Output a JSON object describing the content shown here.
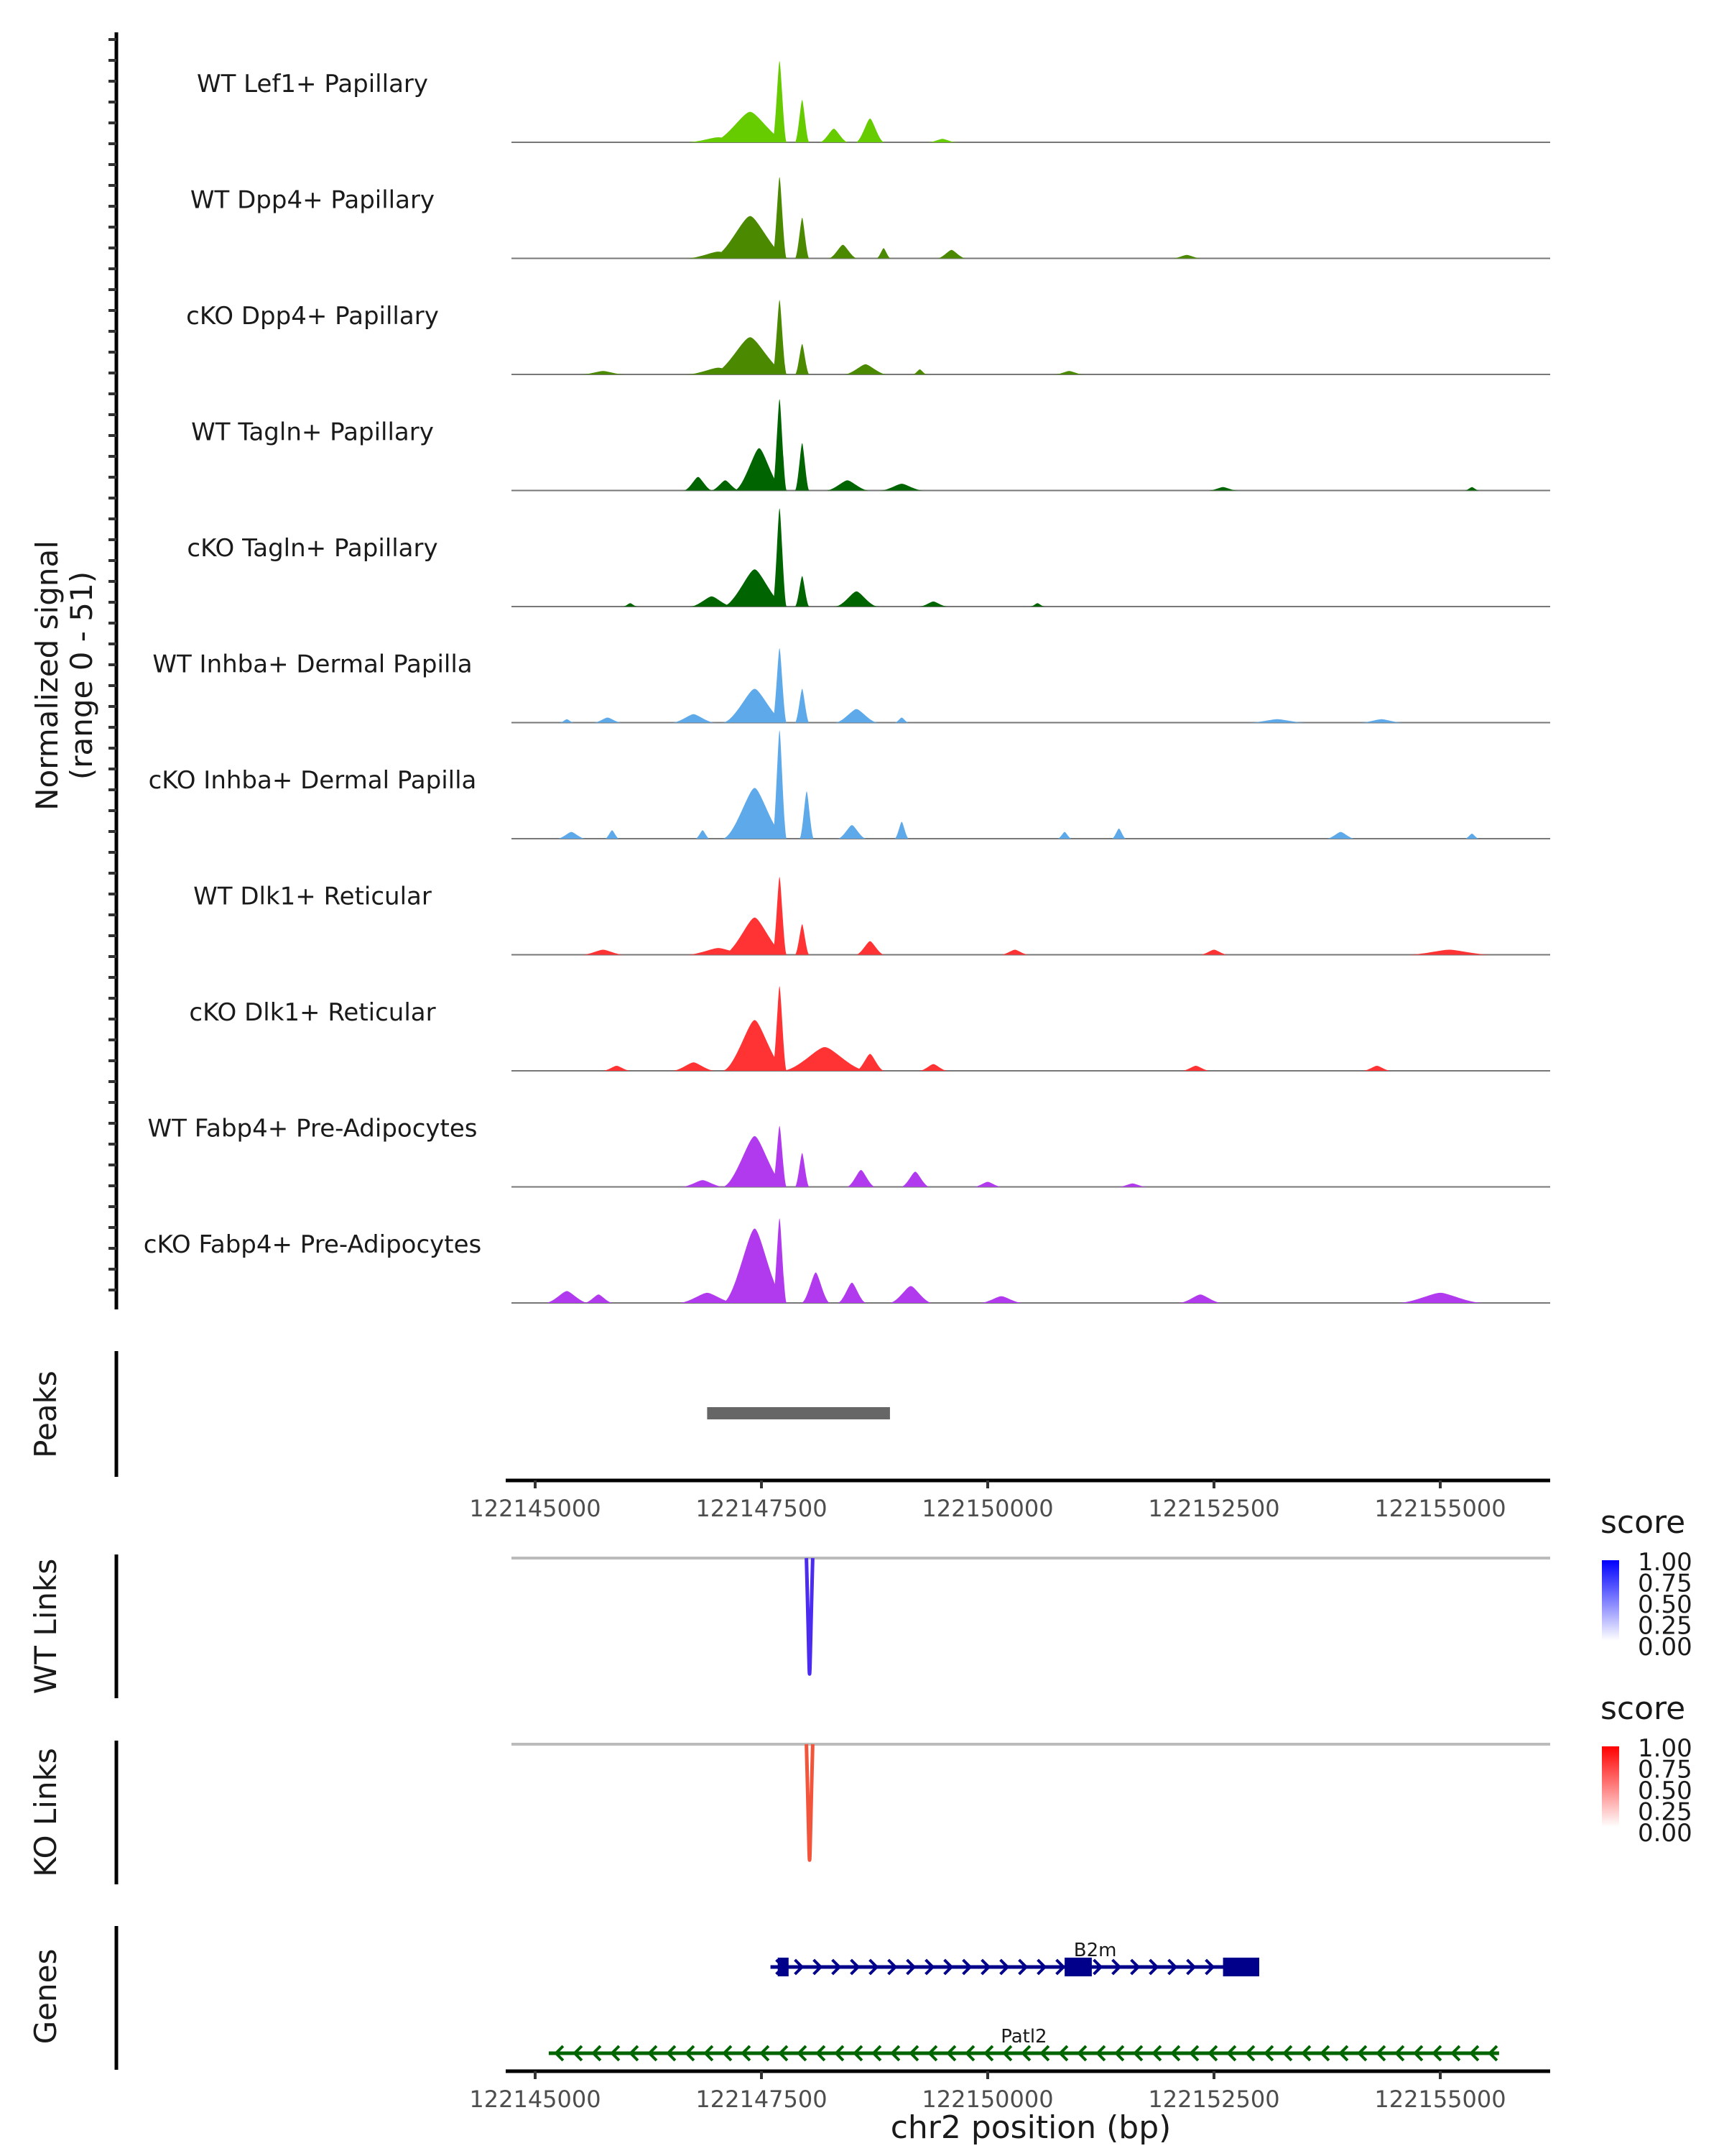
{
  "chart_data": {
    "type": "area",
    "title": "",
    "ylabel": "Normalized signal",
    "ylabel_sub": "(range 0 - 51)",
    "ylim": [
      0,
      51
    ],
    "xlabel": "chr2 position (bp)",
    "xlim": [
      122144850,
      122156400
    ],
    "x_ticks": [
      122145000,
      122147500,
      122150000,
      122152500,
      122155000
    ],
    "x_tick_labels": [
      "122145000",
      "122147500",
      "122150000",
      "122152500",
      "122155000"
    ],
    "tracks": [
      {
        "name": "WT Lef1+ Papillary",
        "color": "#66CC00",
        "peaks": [
          [
            122146800,
            122147250,
            3
          ],
          [
            122147100,
            122147650,
            18
          ],
          [
            122147650,
            122147750,
            48
          ],
          [
            122147900,
            122148000,
            25
          ],
          [
            122148200,
            122148400,
            8
          ],
          [
            122148600,
            122148800,
            14
          ],
          [
            122149400,
            122149600,
            2
          ]
        ]
      },
      {
        "name": "WT Dpp4+ Papillary",
        "color": "#4B8A00",
        "peaks": [
          [
            122146800,
            122147250,
            4
          ],
          [
            122147100,
            122147650,
            25
          ],
          [
            122147650,
            122147750,
            48
          ],
          [
            122147900,
            122148000,
            24
          ],
          [
            122148300,
            122148500,
            8
          ],
          [
            122148800,
            122148900,
            6
          ],
          [
            122149500,
            122149700,
            5
          ],
          [
            122152100,
            122152300,
            2
          ]
        ]
      },
      {
        "name": "cKO Dpp4+ Papillary",
        "color": "#4B8A00",
        "peaks": [
          [
            122145600,
            122145900,
            2
          ],
          [
            122146800,
            122147250,
            4
          ],
          [
            122147100,
            122147650,
            22
          ],
          [
            122147650,
            122147750,
            44
          ],
          [
            122147900,
            122148000,
            18
          ],
          [
            122148500,
            122148800,
            6
          ],
          [
            122149200,
            122149300,
            3
          ],
          [
            122150800,
            122151000,
            2
          ]
        ]
      },
      {
        "name": "WT Tagln+ Papillary",
        "color": "#006400",
        "peaks": [
          [
            122146700,
            122146900,
            8
          ],
          [
            122147000,
            122147200,
            6
          ],
          [
            122147300,
            122147650,
            25
          ],
          [
            122147650,
            122147750,
            54
          ],
          [
            122147900,
            122148000,
            28
          ],
          [
            122148300,
            122148600,
            6
          ],
          [
            122148900,
            122149200,
            4
          ],
          [
            122152500,
            122152700,
            2
          ],
          [
            122155300,
            122155400,
            2
          ]
        ]
      },
      {
        "name": "cKO Tagln+ Papillary",
        "color": "#006400",
        "peaks": [
          [
            122146000,
            122146100,
            2
          ],
          [
            122146800,
            122147100,
            6
          ],
          [
            122147200,
            122147650,
            22
          ],
          [
            122147650,
            122147750,
            58
          ],
          [
            122147900,
            122148000,
            18
          ],
          [
            122148400,
            122148700,
            9
          ],
          [
            122149300,
            122149500,
            3
          ],
          [
            122150500,
            122150600,
            2
          ]
        ]
      },
      {
        "name": "WT Inhba+ Dermal Papilla",
        "color": "#5DA9E9",
        "peaks": [
          [
            122145300,
            122145400,
            2
          ],
          [
            122145700,
            122145900,
            3
          ],
          [
            122146600,
            122146900,
            5
          ],
          [
            122147200,
            122147650,
            20
          ],
          [
            122147650,
            122147750,
            44
          ],
          [
            122147900,
            122148000,
            20
          ],
          [
            122148400,
            122148700,
            8
          ],
          [
            122149000,
            122149100,
            3
          ],
          [
            122153000,
            122153400,
            2
          ],
          [
            122154200,
            122154500,
            2
          ]
        ]
      },
      {
        "name": "cKO Inhba+ Dermal Papilla",
        "color": "#5DA9E9",
        "peaks": [
          [
            122145300,
            122145500,
            4
          ],
          [
            122145800,
            122145900,
            5
          ],
          [
            122146800,
            122146900,
            5
          ],
          [
            122147200,
            122147650,
            30
          ],
          [
            122147650,
            122147750,
            64
          ],
          [
            122147950,
            122148050,
            28
          ],
          [
            122148400,
            122148600,
            8
          ],
          [
            122149000,
            122149100,
            10
          ],
          [
            122150800,
            122150900,
            4
          ],
          [
            122151400,
            122151500,
            6
          ],
          [
            122153800,
            122154000,
            4
          ],
          [
            122155300,
            122155400,
            3
          ]
        ]
      },
      {
        "name": "WT Dlk1+ Reticular",
        "color": "#FF3333",
        "peaks": [
          [
            122145600,
            122145900,
            3
          ],
          [
            122146800,
            122147250,
            4
          ],
          [
            122147200,
            122147650,
            22
          ],
          [
            122147650,
            122147750,
            46
          ],
          [
            122147900,
            122148000,
            18
          ],
          [
            122148600,
            122148800,
            8
          ],
          [
            122150200,
            122150400,
            3
          ],
          [
            122152400,
            122152600,
            3
          ],
          [
            122154800,
            122155400,
            3
          ]
        ]
      },
      {
        "name": "cKO Dlk1+ Reticular",
        "color": "#FF3333",
        "peaks": [
          [
            122145800,
            122146000,
            3
          ],
          [
            122146600,
            122146900,
            5
          ],
          [
            122147200,
            122147650,
            30
          ],
          [
            122147650,
            122147750,
            50
          ],
          [
            122147900,
            122148500,
            14
          ],
          [
            122148600,
            122148800,
            10
          ],
          [
            122149300,
            122149500,
            4
          ],
          [
            122152200,
            122152400,
            3
          ],
          [
            122154200,
            122154400,
            3
          ]
        ]
      },
      {
        "name": "WT Fabp4+ Pre-Adipocytes",
        "color": "#B23AEE",
        "peaks": [
          [
            122146700,
            122147000,
            4
          ],
          [
            122147200,
            122147650,
            30
          ],
          [
            122147650,
            122147750,
            36
          ],
          [
            122147900,
            122148000,
            20
          ],
          [
            122148500,
            122148700,
            10
          ],
          [
            122149100,
            122149300,
            9
          ],
          [
            122149900,
            122150100,
            3
          ],
          [
            122151500,
            122151700,
            2
          ]
        ]
      },
      {
        "name": "cKO Fabp4+ Pre-Adipocytes",
        "color": "#B23AEE",
        "peaks": [
          [
            122145200,
            122145500,
            7
          ],
          [
            122145600,
            122145800,
            5
          ],
          [
            122146700,
            122147100,
            6
          ],
          [
            122147200,
            122147650,
            44
          ],
          [
            122147650,
            122147750,
            50
          ],
          [
            122148000,
            122148200,
            18
          ],
          [
            122148400,
            122148600,
            12
          ],
          [
            122149000,
            122149300,
            10
          ],
          [
            122150000,
            122150300,
            4
          ],
          [
            122152200,
            122152500,
            5
          ],
          [
            122154700,
            122155300,
            6
          ]
        ]
      }
    ],
    "peaks_track": {
      "label": "Peaks",
      "color": "#666666",
      "regions": [
        [
          122146900,
          122148920
        ]
      ]
    },
    "links": [
      {
        "label": "WT Links",
        "color": "#4B2BF0",
        "start": 122147600,
        "end": 122147900,
        "score": 0.85,
        "legend": {
          "title": "score",
          "low": "#FFFFFF",
          "high": "#0000FF",
          "ticks": [
            "1.00",
            "0.75",
            "0.50",
            "0.25",
            "0.00"
          ]
        }
      },
      {
        "label": "KO Links",
        "color": "#F2553B",
        "start": 122147600,
        "end": 122147900,
        "score": 0.85,
        "legend": {
          "title": "score",
          "low": "#FFFFFF",
          "high": "#FF0000",
          "ticks": [
            "1.00",
            "0.75",
            "0.50",
            "0.25",
            "0.00"
          ]
        }
      }
    ],
    "genes": {
      "label": "Genes",
      "items": [
        {
          "name": "B2m",
          "strand": "+",
          "color": "#00008B",
          "start": 122147600,
          "end": 122152950,
          "exons": [
            [
              122147680,
              122147800
            ],
            [
              122150850,
              122151150
            ],
            [
              122152600,
              122153000
            ]
          ]
        },
        {
          "name": "Patl2",
          "strand": "-",
          "color": "#006400",
          "start": 122145150,
          "end": 122155650,
          "exons": []
        }
      ]
    }
  }
}
